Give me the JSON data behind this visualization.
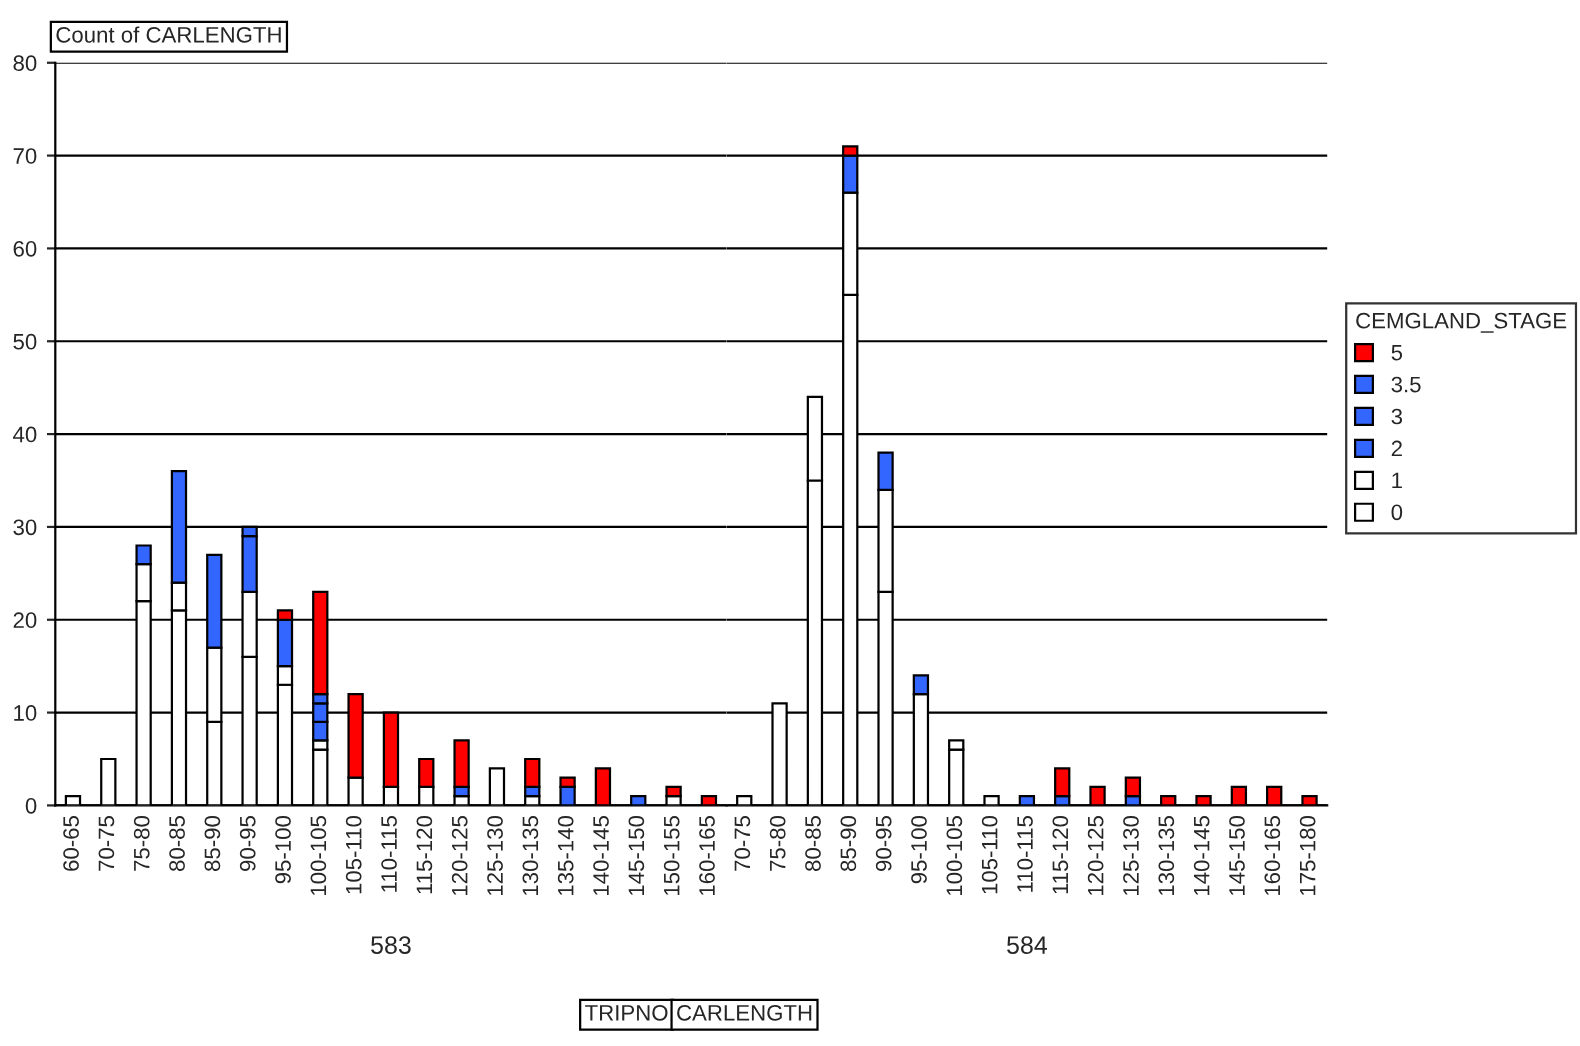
{
  "chart_data": [
    {
      "type": "bar",
      "stacked": true,
      "title": "Count of CARLENGTH",
      "xlabel": "583",
      "annotations": [
        "TRIPNO",
        "CARLENGTH"
      ],
      "categories": [
        "60-65",
        "70-75",
        "75-80",
        "80-85",
        "85-90",
        "90-95",
        "95-100",
        "100-105",
        "105-110",
        "110-115",
        "115-120",
        "120-125",
        "125-130",
        "130-135",
        "135-140",
        "140-145",
        "145-150",
        "150-155",
        "160-165"
      ],
      "series": [
        {
          "name": "0",
          "color": "#ffffff",
          "values": [
            1,
            5,
            22,
            21,
            9,
            16,
            13,
            6,
            3,
            2,
            2,
            1,
            4,
            1,
            null,
            null,
            null,
            1,
            null
          ]
        },
        {
          "name": "1",
          "color": "#ffffff",
          "values": [
            null,
            null,
            4,
            3,
            8,
            7,
            2,
            1,
            null,
            null,
            null,
            null,
            null,
            null,
            null,
            null,
            null,
            null,
            null
          ]
        },
        {
          "name": "2",
          "color": "#3366ff",
          "values": [
            null,
            null,
            2,
            12,
            10,
            6,
            5,
            2,
            null,
            null,
            null,
            1,
            null,
            1,
            2,
            null,
            1,
            null,
            null
          ]
        },
        {
          "name": "3",
          "color": "#3366ff",
          "values": [
            null,
            null,
            null,
            null,
            null,
            1,
            null,
            2,
            null,
            null,
            null,
            null,
            null,
            null,
            null,
            null,
            null,
            null,
            null
          ]
        },
        {
          "name": "3.5",
          "color": "#3366ff",
          "values": [
            null,
            null,
            null,
            null,
            null,
            null,
            null,
            1,
            null,
            null,
            null,
            null,
            null,
            null,
            null,
            null,
            null,
            null,
            null
          ]
        },
        {
          "name": "5",
          "color": "#ff0000",
          "values": [
            null,
            null,
            null,
            null,
            null,
            null,
            1,
            11,
            9,
            8,
            3,
            5,
            null,
            3,
            1,
            4,
            null,
            1,
            1
          ]
        }
      ],
      "ylim": [
        0,
        80
      ],
      "yticks": [
        0,
        10,
        20,
        30,
        40,
        50,
        60,
        70,
        80
      ],
      "grid": "y",
      "legend": "right",
      "legend_title": "CEMGLAND_STAGE"
    },
    {
      "type": "bar",
      "stacked": true,
      "xlabel": "584",
      "categories": [
        "70-75",
        "75-80",
        "80-85",
        "85-90",
        "90-95",
        "95-100",
        "100-105",
        "105-110",
        "110-115",
        "115-120",
        "120-125",
        "125-130",
        "130-135",
        "140-145",
        "145-150",
        "160-165",
        "175-180"
      ],
      "series": [
        {
          "name": "0",
          "color": "#ffffff",
          "values": [
            1,
            11,
            35,
            55,
            23,
            12,
            6,
            1,
            null,
            null,
            null,
            null,
            null,
            null,
            null,
            null,
            null
          ]
        },
        {
          "name": "1",
          "color": "#ffffff",
          "values": [
            null,
            null,
            9,
            11,
            11,
            null,
            1,
            null,
            null,
            null,
            null,
            null,
            null,
            null,
            null,
            null,
            null
          ]
        },
        {
          "name": "2",
          "color": "#3366ff",
          "values": [
            null,
            null,
            null,
            4,
            4,
            2,
            null,
            null,
            1,
            1,
            null,
            1,
            null,
            null,
            null,
            null,
            null
          ]
        },
        {
          "name": "3",
          "color": "#3366ff",
          "values": [
            null,
            null,
            null,
            null,
            null,
            null,
            null,
            null,
            null,
            null,
            null,
            null,
            null,
            null,
            null,
            null,
            null
          ]
        },
        {
          "name": "3.5",
          "color": "#3366ff",
          "values": [
            null,
            null,
            null,
            null,
            null,
            null,
            null,
            null,
            null,
            null,
            null,
            null,
            null,
            null,
            null,
            null,
            null
          ]
        },
        {
          "name": "5",
          "color": "#ff0000",
          "values": [
            null,
            null,
            null,
            1,
            null,
            null,
            null,
            null,
            null,
            3,
            2,
            2,
            1,
            1,
            2,
            2,
            1
          ]
        }
      ],
      "ylim": [
        0,
        80
      ],
      "yticks": [
        0,
        10,
        20,
        30,
        40,
        50,
        60,
        70,
        80
      ],
      "grid": "y",
      "tick_labels": "x"
    }
  ]
}
